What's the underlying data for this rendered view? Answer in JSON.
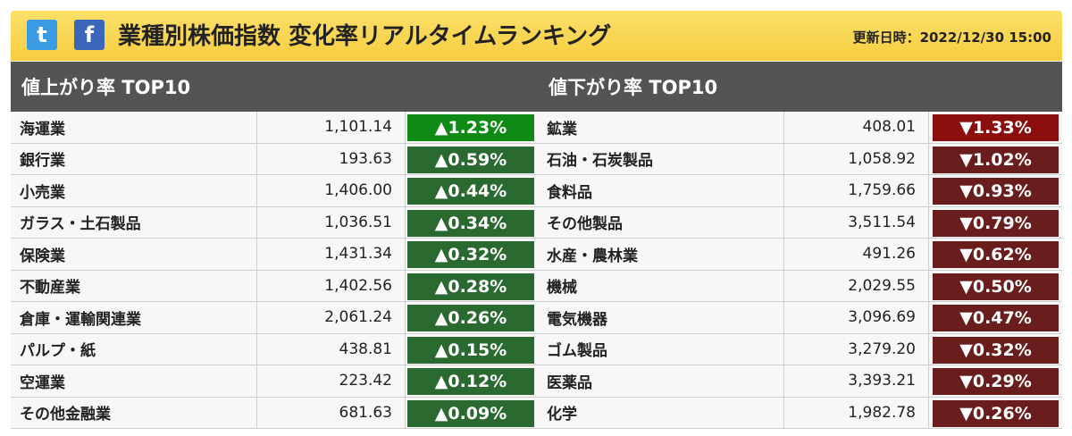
{
  "header": {
    "twitter_glyph": "t",
    "facebook_glyph": "f",
    "title": "業種別株価指数 変化率リアルタイムランキング",
    "updated": "更新日時：2022/12/30 15:00"
  },
  "gainers": {
    "title": "値上がり率 TOP10",
    "color": "#2a6a30",
    "top_color": "#0f8a16",
    "rows": [
      {
        "name": "海運業",
        "value": "1,101.14",
        "change": "▲1.23%"
      },
      {
        "name": "銀行業",
        "value": "193.63",
        "change": "▲0.59%"
      },
      {
        "name": "小売業",
        "value": "1,406.00",
        "change": "▲0.44%"
      },
      {
        "name": "ガラス・土石製品",
        "value": "1,036.51",
        "change": "▲0.34%"
      },
      {
        "name": "保険業",
        "value": "1,431.34",
        "change": "▲0.32%"
      },
      {
        "name": "不動産業",
        "value": "1,402.56",
        "change": "▲0.28%"
      },
      {
        "name": "倉庫・運輸関連業",
        "value": "2,061.24",
        "change": "▲0.26%"
      },
      {
        "name": "パルプ・紙",
        "value": "438.81",
        "change": "▲0.15%"
      },
      {
        "name": "空運業",
        "value": "223.42",
        "change": "▲0.12%"
      },
      {
        "name": "その他金融業",
        "value": "681.63",
        "change": "▲0.09%"
      }
    ]
  },
  "losers": {
    "title": "値下がり率 TOP10",
    "color": "#6a1d1d",
    "top_color": "#8c0f0f",
    "rows": [
      {
        "name": "鉱業",
        "value": "408.01",
        "change": "▼1.33%"
      },
      {
        "name": "石油・石炭製品",
        "value": "1,058.92",
        "change": "▼1.02%"
      },
      {
        "name": "食料品",
        "value": "1,759.66",
        "change": "▼0.93%"
      },
      {
        "name": "その他製品",
        "value": "3,511.54",
        "change": "▼0.79%"
      },
      {
        "name": "水産・農林業",
        "value": "491.26",
        "change": "▼0.62%"
      },
      {
        "name": "機械",
        "value": "2,029.55",
        "change": "▼0.50%"
      },
      {
        "name": "電気機器",
        "value": "3,096.69",
        "change": "▼0.47%"
      },
      {
        "name": "ゴム製品",
        "value": "3,279.20",
        "change": "▼0.32%"
      },
      {
        "name": "医薬品",
        "value": "3,393.21",
        "change": "▼0.29%"
      },
      {
        "name": "化学",
        "value": "1,982.78",
        "change": "▼0.26%"
      }
    ]
  }
}
